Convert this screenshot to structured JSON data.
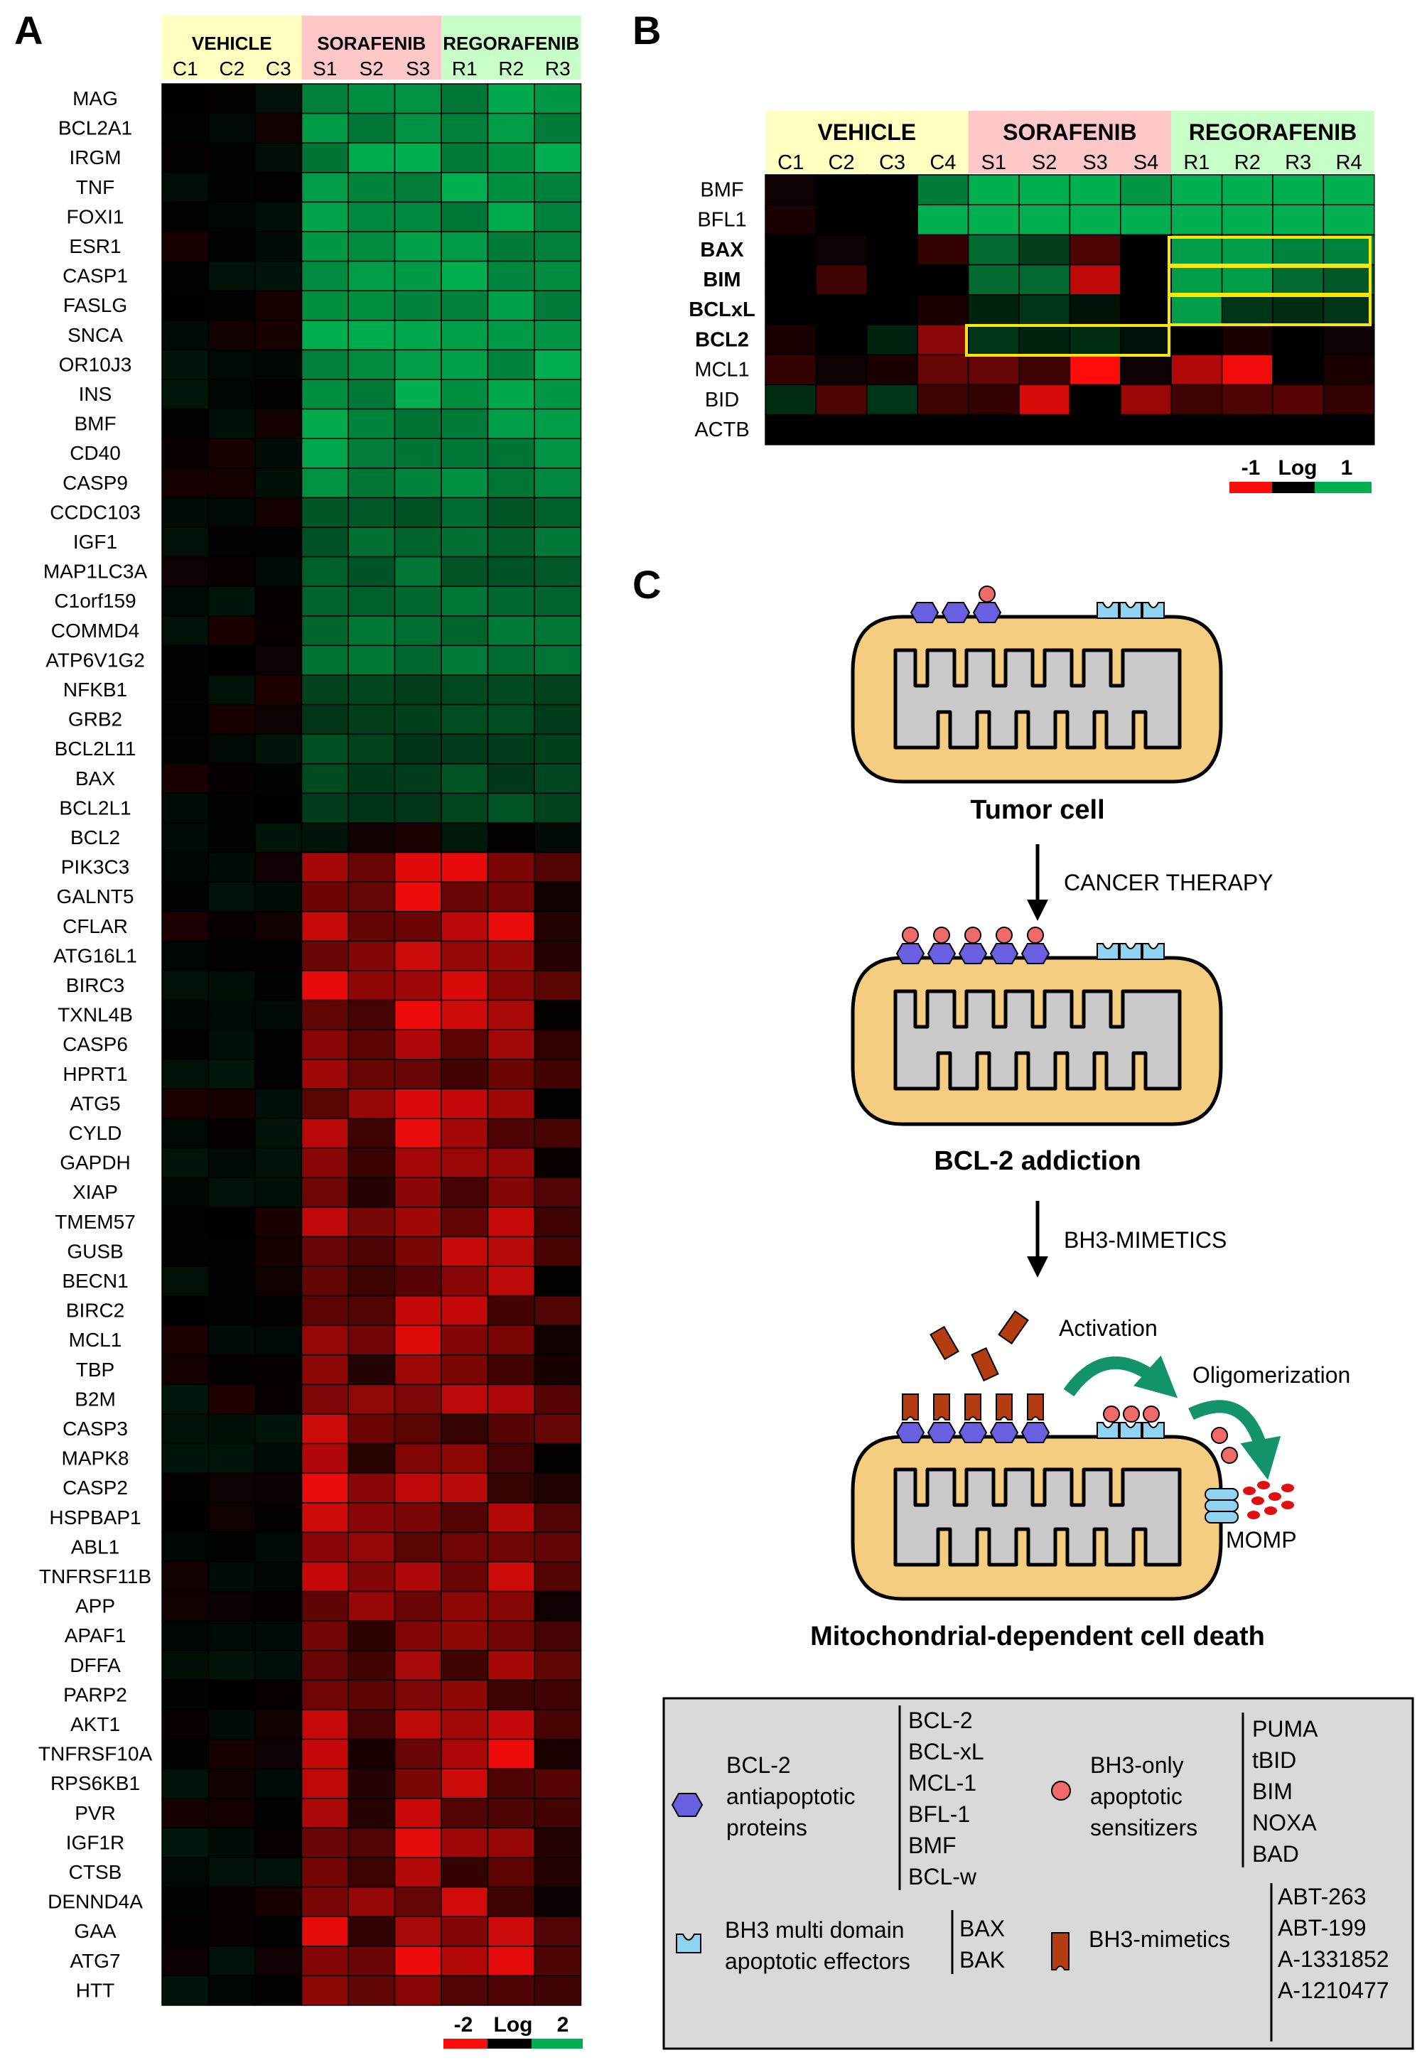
{
  "panels": {
    "a": "A",
    "b": "B",
    "c": "C"
  },
  "panel_a": {
    "groups": [
      {
        "label": "VEHICLE",
        "columns": [
          "C1",
          "C2",
          "C3"
        ],
        "bg": "#ffffc0"
      },
      {
        "label": "SORAFENIB",
        "columns": [
          "S1",
          "S2",
          "S3"
        ],
        "bg": "#ffc8c8"
      },
      {
        "label": "REGORAFENIB",
        "columns": [
          "R1",
          "R2",
          "R3"
        ],
        "bg": "#c8ffc8"
      }
    ],
    "genes": [
      "MAG",
      "BCL2A1",
      "IRGM",
      "TNF",
      "FOXI1",
      "ESR1",
      "CASP1",
      "FASLG",
      "SNCA",
      "OR10J3",
      "INS",
      "BMF",
      "CD40",
      "CASP9",
      "CCDC103",
      "IGF1",
      "MAP1LC3A",
      "C1orf159",
      "COMMD4",
      "ATP6V1G2",
      "NFKB1",
      "GRB2",
      "BCL2L11",
      "BAX",
      "BCL2L1",
      "BCL2",
      "PIK3C3",
      "GALNT5",
      "CFLAR",
      "ATG16L1",
      "BIRC3",
      "TXNL4B",
      "CASP6",
      "HPRT1",
      "ATG5",
      "CYLD",
      "GAPDH",
      "XIAP",
      "TMEM57",
      "GUSB",
      "BECN1",
      "BIRC2",
      "MCL1",
      "TBP",
      "B2M",
      "CASP3",
      "MAPK8",
      "CASP2",
      "HSPBAP1",
      "ABL1",
      "TNFRSF11B",
      "APP",
      "APAF1",
      "DFFA",
      "PARP2",
      "AKT1",
      "TNFRSF10A",
      "RPS6KB1",
      "PVR",
      "IGF1R",
      "CTSB",
      "DENND4A",
      "GAA",
      "ATG7",
      "HTT"
    ],
    "scale": {
      "min_label": "-2",
      "mid_label": "Log",
      "max_label": "2"
    }
  },
  "panel_b": {
    "groups": [
      {
        "label": "VEHICLE",
        "columns": [
          "C1",
          "C2",
          "C3",
          "C4"
        ],
        "bg": "#ffffc0"
      },
      {
        "label": "SORAFENIB",
        "columns": [
          "S1",
          "S2",
          "S3",
          "S4"
        ],
        "bg": "#ffc8c8"
      },
      {
        "label": "REGORAFENIB",
        "columns": [
          "R1",
          "R2",
          "R3",
          "R4"
        ],
        "bg": "#c8ffc8"
      }
    ],
    "genes": [
      {
        "name": "BMF",
        "bold": false
      },
      {
        "name": "BFL1",
        "bold": false
      },
      {
        "name": "BAX",
        "bold": true
      },
      {
        "name": "BIM",
        "bold": true
      },
      {
        "name": "BCLxL",
        "bold": true
      },
      {
        "name": "BCL2",
        "bold": true
      },
      {
        "name": "MCL1",
        "bold": false
      },
      {
        "name": "BID",
        "bold": false
      },
      {
        "name": "ACTB",
        "bold": false
      }
    ],
    "values": [
      [
        0.05,
        0,
        0,
        -0.7,
        -1,
        -1,
        -1,
        -0.85,
        -1,
        -1,
        -1,
        -1
      ],
      [
        0.1,
        0,
        0,
        -1,
        -1,
        -1,
        -1,
        -1,
        -1,
        -1,
        -1,
        -1
      ],
      [
        0,
        0.05,
        0,
        0.2,
        -0.6,
        -0.35,
        0.3,
        0,
        -0.9,
        -0.9,
        -0.75,
        -0.75
      ],
      [
        0,
        0.25,
        0,
        0,
        -0.6,
        -0.6,
        0.75,
        0,
        -0.9,
        -0.9,
        -0.6,
        -0.5
      ],
      [
        0,
        0,
        0,
        0.1,
        -0.2,
        -0.3,
        -0.1,
        0,
        -0.9,
        -0.3,
        -0.25,
        -0.3
      ],
      [
        0.1,
        0,
        -0.2,
        0.55,
        -0.3,
        -0.2,
        -0.25,
        -0.1,
        0,
        0.1,
        0,
        0.05
      ],
      [
        0.2,
        0.05,
        0.1,
        0.4,
        0.4,
        0.25,
        1,
        0.05,
        0.7,
        0.95,
        0,
        0.1
      ],
      [
        -0.25,
        0.3,
        -0.3,
        0.25,
        0.2,
        0.85,
        0,
        0.6,
        0.25,
        0.3,
        0.35,
        0.2
      ],
      [
        0,
        0,
        0,
        0,
        0,
        0,
        0,
        0,
        0,
        0,
        0,
        0
      ]
    ],
    "scale": {
      "min_label": "-1",
      "mid_label": "Log",
      "max_label": "1"
    }
  },
  "panel_c": {
    "state_labels": [
      "Tumor cell",
      "BCL-2 addiction",
      "Mitochondrial-dependent cell death"
    ],
    "arrow_labels": [
      "CANCER THERAPY",
      "BH3-MIMETICS"
    ],
    "process_labels": {
      "activation": "Activation",
      "oligomerization": "Oligomerization",
      "momp": "MOMP"
    },
    "legend": {
      "antiapoptotic": {
        "label": "BCL-2\nantiapoptotic\nproteins",
        "items": [
          "BCL-2",
          "BCL-xL",
          "MCL-1",
          "BFL-1",
          "BMF",
          "BCL-w"
        ]
      },
      "sensitizers": {
        "label": "BH3-only\napoptotic\nsensitizers",
        "items": [
          "PUMA",
          "tBID",
          "BIM",
          "NOXA",
          "BAD"
        ]
      },
      "effectors": {
        "label": "BH3 multi domain\napoptotic effectors",
        "items": [
          "BAX",
          "BAK"
        ]
      },
      "mimetics": {
        "label": "BH3-mimetics",
        "items": [
          "ABT-263",
          "ABT-199",
          "A-1331852",
          "A-1210477"
        ]
      }
    },
    "colors": {
      "antiapoptotic": "#6a5fe0",
      "sensitizer": "#f06a6a",
      "effector": "#8fd3f0",
      "mimetic": "#b33c10",
      "mito_outer": "#f5cd80",
      "mito_inner": "#c9c9c9",
      "arrow_green": "#12936c"
    }
  }
}
